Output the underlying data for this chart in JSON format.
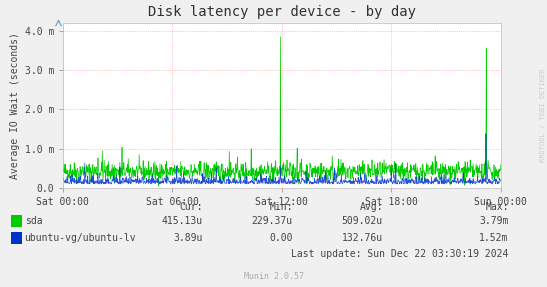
{
  "title": "Disk latency per device - by day",
  "ylabel": "Average IO Wait (seconds)",
  "background_color": "#f0f0f0",
  "plot_background": "#ffffff",
  "grid_color": "#ff8888",
  "x_ticks_labels": [
    "Sat 00:00",
    "Sat 06:00",
    "Sat 12:00",
    "Sat 18:00",
    "Sun 00:00"
  ],
  "x_ticks_pos": [
    0.0,
    0.25,
    0.5,
    0.75,
    1.0
  ],
  "ytick_vals": [
    0.0,
    1.0,
    2.0,
    3.0,
    4.0
  ],
  "ytick_labels": [
    "0.0",
    "1.0 m",
    "2.0 m",
    "3.0 m",
    "4.0 m"
  ],
  "ylim": [
    0,
    4.2
  ],
  "sda_color": "#00cc00",
  "lv_color": "#0033cc",
  "legend_sda": "sda",
  "legend_lv": "ubuntu-vg/ubuntu-lv",
  "cur_sda": "415.13u",
  "min_sda": "229.37u",
  "avg_sda": "509.02u",
  "max_sda": "3.79m",
  "cur_lv": "3.89u",
  "min_lv": "0.00",
  "avg_lv": "132.76u",
  "max_lv": "1.52m",
  "last_update": "Last update: Sun Dec 22 03:30:19 2024",
  "munin_version": "Munin 2.0.57",
  "watermark": "RRDTOOL / TOBI OETIKER",
  "title_fontsize": 10,
  "label_fontsize": 7,
  "tick_fontsize": 7,
  "legend_fontsize": 7,
  "watermark_fontsize": 5
}
